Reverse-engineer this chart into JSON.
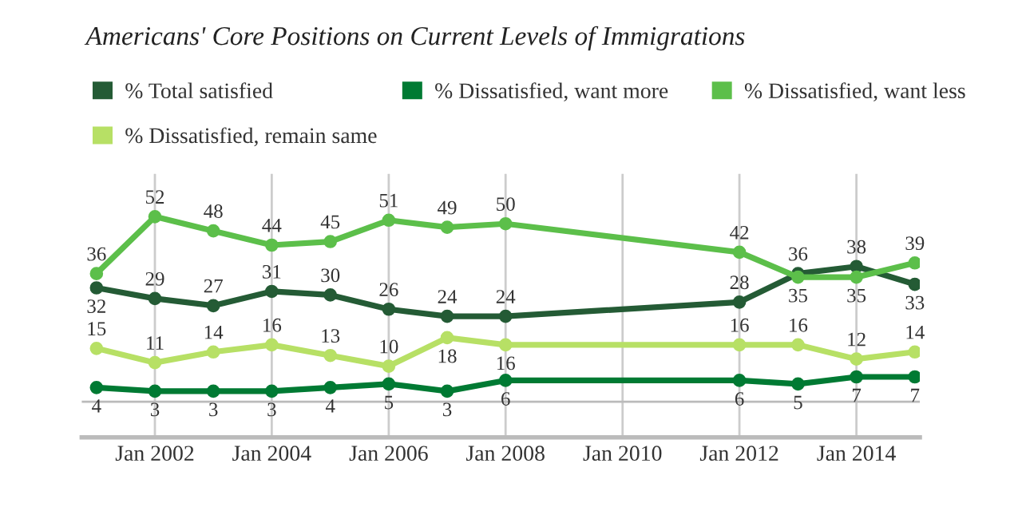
{
  "chart_data": {
    "type": "line",
    "title": "Americans' Core Positions on Current Levels of Immigrations",
    "x": [
      "2001-01",
      "2002-01",
      "2003-01",
      "2004-01",
      "2005-01",
      "2006-01",
      "2007-01",
      "2008-01",
      "2012-01",
      "2013-01",
      "2014-01",
      "2015-01"
    ],
    "series": [
      {
        "name": "% Total satisfied",
        "color": "#245b35",
        "values": [
          32,
          29,
          27,
          31,
          30,
          26,
          24,
          24,
          28,
          36,
          38,
          33
        ]
      },
      {
        "name": "% Dissatisfied, want more",
        "color": "#007a33",
        "values": [
          4,
          3,
          3,
          3,
          4,
          5,
          3,
          6,
          6,
          5,
          7,
          7
        ]
      },
      {
        "name": "% Dissatisfied, want less",
        "color": "#5cbf4a",
        "values": [
          36,
          52,
          48,
          44,
          45,
          51,
          49,
          50,
          42,
          35,
          35,
          39
        ]
      },
      {
        "name": "% Dissatisfied, remain same",
        "color": "#b7e065",
        "values": [
          15,
          11,
          14,
          16,
          13,
          10,
          18,
          16,
          16,
          16,
          12,
          14
        ]
      }
    ],
    "xlim": [
      "2000-10",
      "2015-02"
    ],
    "xticks": [
      {
        "value": "2002-01",
        "label": "Jan 2002"
      },
      {
        "value": "2004-01",
        "label": "Jan 2004"
      },
      {
        "value": "2006-01",
        "label": "Jan 2006"
      },
      {
        "value": "2008-01",
        "label": "Jan 2008"
      },
      {
        "value": "2010-01",
        "label": "Jan 2010"
      },
      {
        "value": "2012-01",
        "label": "Jan 2012"
      },
      {
        "value": "2014-01",
        "label": "Jan 2014"
      }
    ],
    "ylim": [
      -10,
      64
    ],
    "tick_labels": "x",
    "ref_lines": [
      {
        "axis": "y",
        "value": 0,
        "color": "#bbbbbb"
      }
    ],
    "grid": "x",
    "legend": "top",
    "marker": "circle",
    "line_style": "solid",
    "data_labels": true
  }
}
